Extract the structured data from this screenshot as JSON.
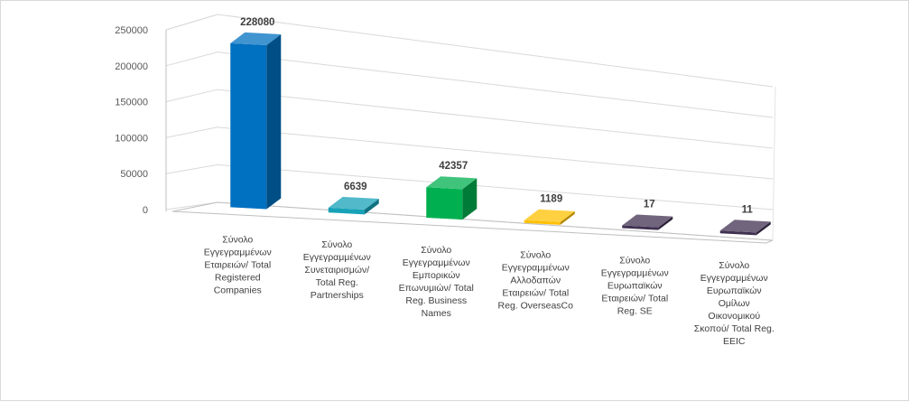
{
  "chart_data": {
    "type": "bar",
    "categories": [
      [
        "Σύνολο",
        "Εγγεγραμμένων",
        "Εταιρειών/ Total",
        "Registered",
        "Companies"
      ],
      [
        "Σύνολο",
        "Εγγεγραμμένων",
        "Συνεταιρισμών/",
        "Total Reg.",
        "Partnerships"
      ],
      [
        "Σύνολο",
        "Εγγεγραμμένων",
        "Εμπορικών",
        "Επωνυμιών/ Total",
        "Reg. Business",
        "Names"
      ],
      [
        "Σύνολο",
        "Εγγεγραμμένων",
        "Αλλοδαπών",
        "Εταιρειών/ Total",
        "Reg. OverseasCo"
      ],
      [
        "Σύνολο",
        "Εγγεγραμμένων",
        "Ευρωπαϊκών",
        "Εταιρειών/ Total",
        "Reg. SE"
      ],
      [
        "Σύνολο",
        "Εγγεγραμμένων",
        "Ευρωπαϊκών",
        "Ομίλων",
        "Οικονομικού",
        "Σκοπού/ Total Reg.",
        "EEIC"
      ]
    ],
    "values": [
      228080,
      6639,
      42357,
      1189,
      17,
      11
    ],
    "data_labels": [
      "228080",
      "6639",
      "42357",
      "1189",
      "17",
      "11"
    ],
    "y_ticks": [
      "0",
      "50000",
      "100000",
      "150000",
      "200000",
      "250000"
    ],
    "ylim": [
      0,
      250000
    ],
    "colors": [
      "#0070c0",
      "#17a2b8",
      "#00b050",
      "#ffc000",
      "#403151",
      "#403151"
    ],
    "grid": true,
    "legend": "none"
  }
}
